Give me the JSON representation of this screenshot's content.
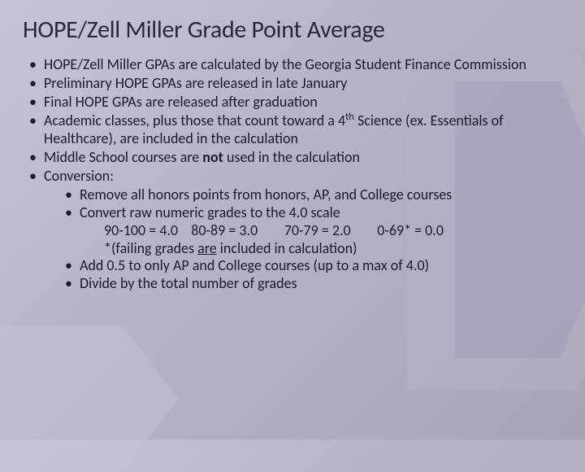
{
  "background": {
    "gradient_start": "#c8c4d8",
    "gradient_mid": "#b8b4c8",
    "gradient_end": "#a8a4b8",
    "shape_color1": "rgba(180,175,200,0.5)",
    "shape_color2": "rgba(160,155,185,0.5)",
    "shape_color3": "rgba(200,195,215,0.4)"
  },
  "title": "HOPE/Zell Miller Grade Point Average",
  "title_fontsize": 30,
  "body_fontsize": 18,
  "text_color": "#1a1a28",
  "bullets": {
    "b1": "HOPE/Zell Miller GPAs are calculated by the Georgia  Student Finance Commission",
    "b2": "Preliminary HOPE GPAs are released in late January",
    "b3": "Final HOPE GPAs are released after graduation",
    "b4_pre": "Academic classes, plus those that count toward a 4",
    "b4_sup": "th",
    "b4_post": " Science (ex. Essentials of Healthcare), are included in the calculation",
    "b5_pre": "Middle School courses are ",
    "b5_bold": "not",
    "b5_post": " used in the calculation",
    "b6": "Conversion:"
  },
  "sub": {
    "s1": "Remove all honors points from honors, AP, and College courses",
    "s2": "Convert raw numeric grades to the 4.0 scale",
    "s2_scale": "90-100 = 4.0    80-89 = 3.0        70-79 = 2.0        0-69* = 0.0",
    "s2_note_pre": "*(failing grades ",
    "s2_note_under": "are",
    "s2_note_post": " included in calculation)",
    "s3": "Add 0.5 to only AP and College courses (up to a max of 4.0)",
    "s4": "Divide by the total number of grades"
  }
}
